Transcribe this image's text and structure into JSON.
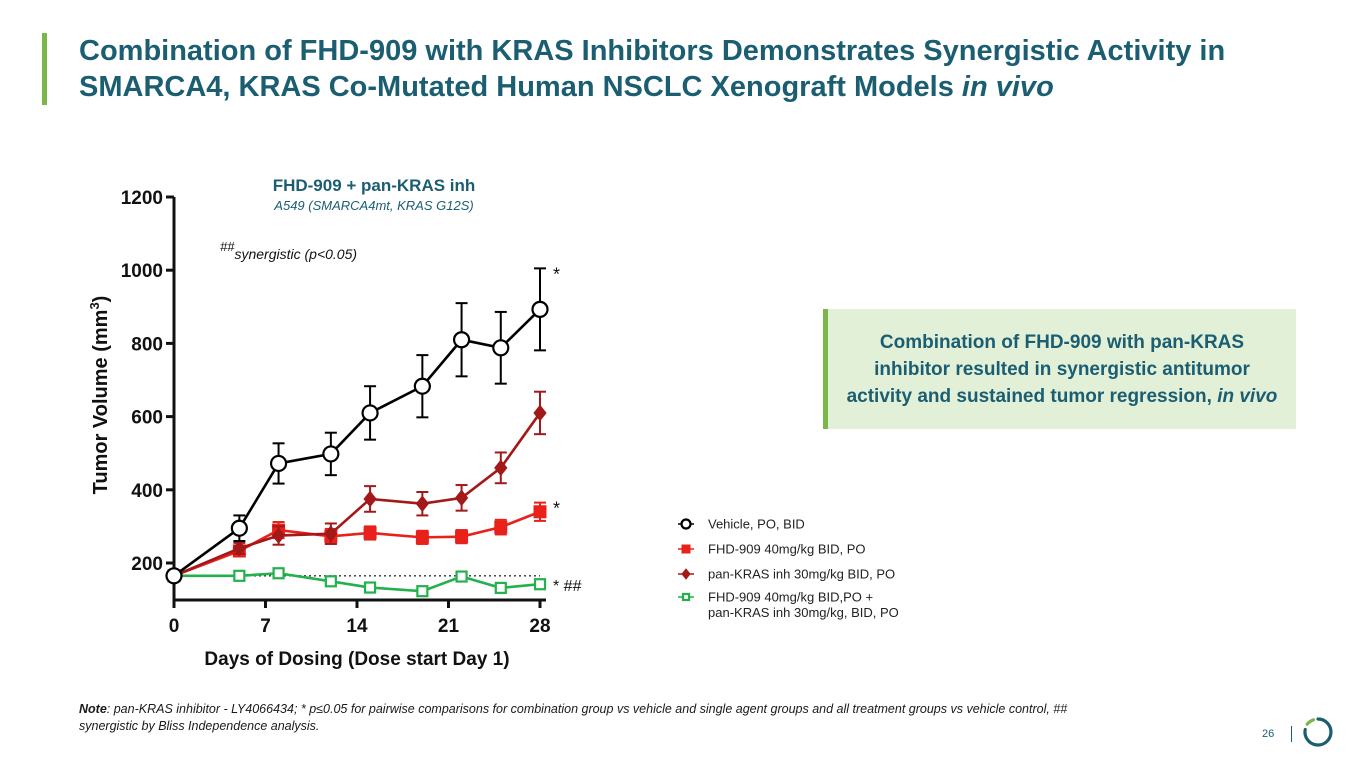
{
  "slide": {
    "title_main": "Combination of FHD-909 with KRAS Inhibitors Demonstrates Synergistic Activity in SMARCA4, KRAS Co-Mutated Human NSCLC Xenograft Models ",
    "title_emph": "in vivo",
    "callout_main": "Combination of FHD-909 with pan-KRAS inhibitor resulted in synergistic antitumor activity and sustained tumor regression, ",
    "callout_emph": "in vivo",
    "note_label": "Note",
    "note_text": ": pan-KRAS inhibitor - LY4066434; * p≤0.05 for pairwise comparisons for combination group vs vehicle and single agent groups and all treatment groups vs vehicle control, ## synergistic by Bliss Independence analysis.",
    "page_number": "26",
    "accent_color": "#7ab648",
    "brand_color": "#1b5e72"
  },
  "chart_data": {
    "type": "line",
    "title": "FHD-909 + pan-KRAS inh",
    "subtitle": "A549 (SMARCA4mt, KRAS G12S)",
    "annotation_prefix": "##",
    "annotation": "synergistic (p<0.05)",
    "xlabel": "Days of Dosing (Dose start Day 1)",
    "ylabel": "Tumor Volume (mm",
    "ylabel_sup": "3",
    "ylabel_close": ")",
    "xlim": [
      0,
      28
    ],
    "ylim": [
      100,
      1200
    ],
    "xticks": [
      0,
      7,
      14,
      21,
      28
    ],
    "yticks": [
      200,
      400,
      600,
      800,
      1000,
      1200
    ],
    "baseline": 165,
    "series": [
      {
        "name": "Vehicle, PO, BID",
        "color": "#000000",
        "marker": "circle-open",
        "x": [
          0,
          5,
          8,
          12,
          15,
          19,
          22,
          25,
          28
        ],
        "values": [
          165,
          295,
          472,
          498,
          610,
          683,
          810,
          788,
          893
        ],
        "errors": [
          10,
          35,
          55,
          58,
          73,
          85,
          100,
          98,
          112
        ],
        "sig": "*"
      },
      {
        "name": "FHD-909 40mg/kg BID, PO",
        "color": "#e8211b",
        "marker": "square-filled",
        "x": [
          0,
          5,
          8,
          12,
          15,
          19,
          22,
          25,
          28
        ],
        "values": [
          165,
          233,
          290,
          273,
          282,
          270,
          272,
          298,
          340
        ],
        "errors": [
          8,
          15,
          22,
          20,
          18,
          18,
          18,
          20,
          25
        ],
        "sig": "*"
      },
      {
        "name": "pan-KRAS inh 30mg/kg BID, PO",
        "color": "#a31818",
        "marker": "diamond-filled",
        "x": [
          0,
          5,
          8,
          12,
          15,
          19,
          22,
          25,
          28
        ],
        "values": [
          165,
          240,
          275,
          280,
          375,
          362,
          378,
          460,
          610
        ],
        "errors": [
          8,
          15,
          25,
          28,
          35,
          32,
          35,
          42,
          58
        ],
        "sig": ""
      },
      {
        "name": "FHD-909 40mg/kg BID,PO +",
        "name_line2": "pan-KRAS inh 30mg/kg, BID, PO",
        "color": "#22b14c",
        "marker": "square-open",
        "x": [
          0,
          5,
          8,
          12,
          15,
          19,
          22,
          25,
          28
        ],
        "values": [
          165,
          165,
          172,
          150,
          133,
          123,
          163,
          132,
          142
        ],
        "errors": [
          0,
          0,
          0,
          0,
          0,
          0,
          0,
          0,
          0
        ],
        "sig": "* ##"
      }
    ]
  }
}
